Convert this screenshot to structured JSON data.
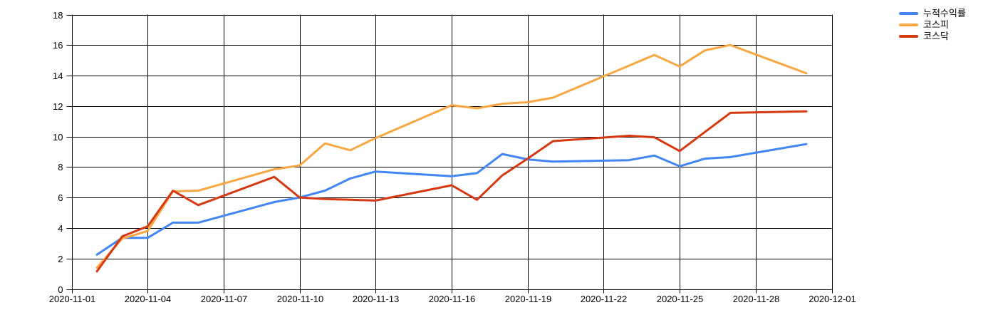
{
  "chart_data": {
    "type": "line",
    "title": "",
    "xlabel": "",
    "ylabel": "",
    "grid": true,
    "legend_position": "right-top",
    "ylim": [
      0,
      18
    ],
    "y_ticks": [
      0,
      2,
      4,
      6,
      8,
      10,
      12,
      14,
      16,
      18
    ],
    "x_start_date": "2020-11-01",
    "x_range_days": 30,
    "x_tick_step_days": 3,
    "x_tick_labels": [
      "2020-11-01",
      "2020-11-04",
      "2020-11-07",
      "2020-11-10",
      "2020-11-13",
      "2020-11-16",
      "2020-11-19",
      "2020-11-22",
      "2020-11-25",
      "2020-11-28",
      "2020-12-01"
    ],
    "point_dates_november": [
      2,
      3,
      4,
      5,
      6,
      9,
      10,
      11,
      12,
      13,
      16,
      17,
      18,
      19,
      20,
      23,
      24,
      25,
      26,
      27,
      30
    ],
    "series": [
      {
        "name": "누적수익률",
        "color": "#4285F4",
        "values": [
          2.3,
          3.4,
          3.4,
          4.4,
          4.4,
          5.75,
          6.05,
          6.5,
          7.3,
          7.75,
          7.45,
          7.65,
          8.9,
          8.55,
          8.4,
          8.5,
          8.8,
          8.1,
          8.6,
          8.7,
          9.55
        ]
      },
      {
        "name": "코스피",
        "color": "#F9A743",
        "values": [
          1.45,
          3.35,
          3.85,
          6.45,
          6.5,
          7.9,
          8.15,
          9.6,
          9.15,
          9.95,
          12.1,
          11.9,
          12.2,
          12.3,
          12.6,
          14.7,
          15.4,
          14.65,
          15.7,
          16.05,
          14.2
        ]
      },
      {
        "name": "코스닥",
        "color": "#D63911",
        "values": [
          1.2,
          3.5,
          4.15,
          6.5,
          5.55,
          7.4,
          6.05,
          5.95,
          5.9,
          5.85,
          6.85,
          5.9,
          7.5,
          8.6,
          9.75,
          10.1,
          10.0,
          9.1,
          10.35,
          11.6,
          11.7
        ]
      }
    ],
    "axis_color": "#000000",
    "grid_color": "#000000",
    "label_color": "#000000"
  }
}
